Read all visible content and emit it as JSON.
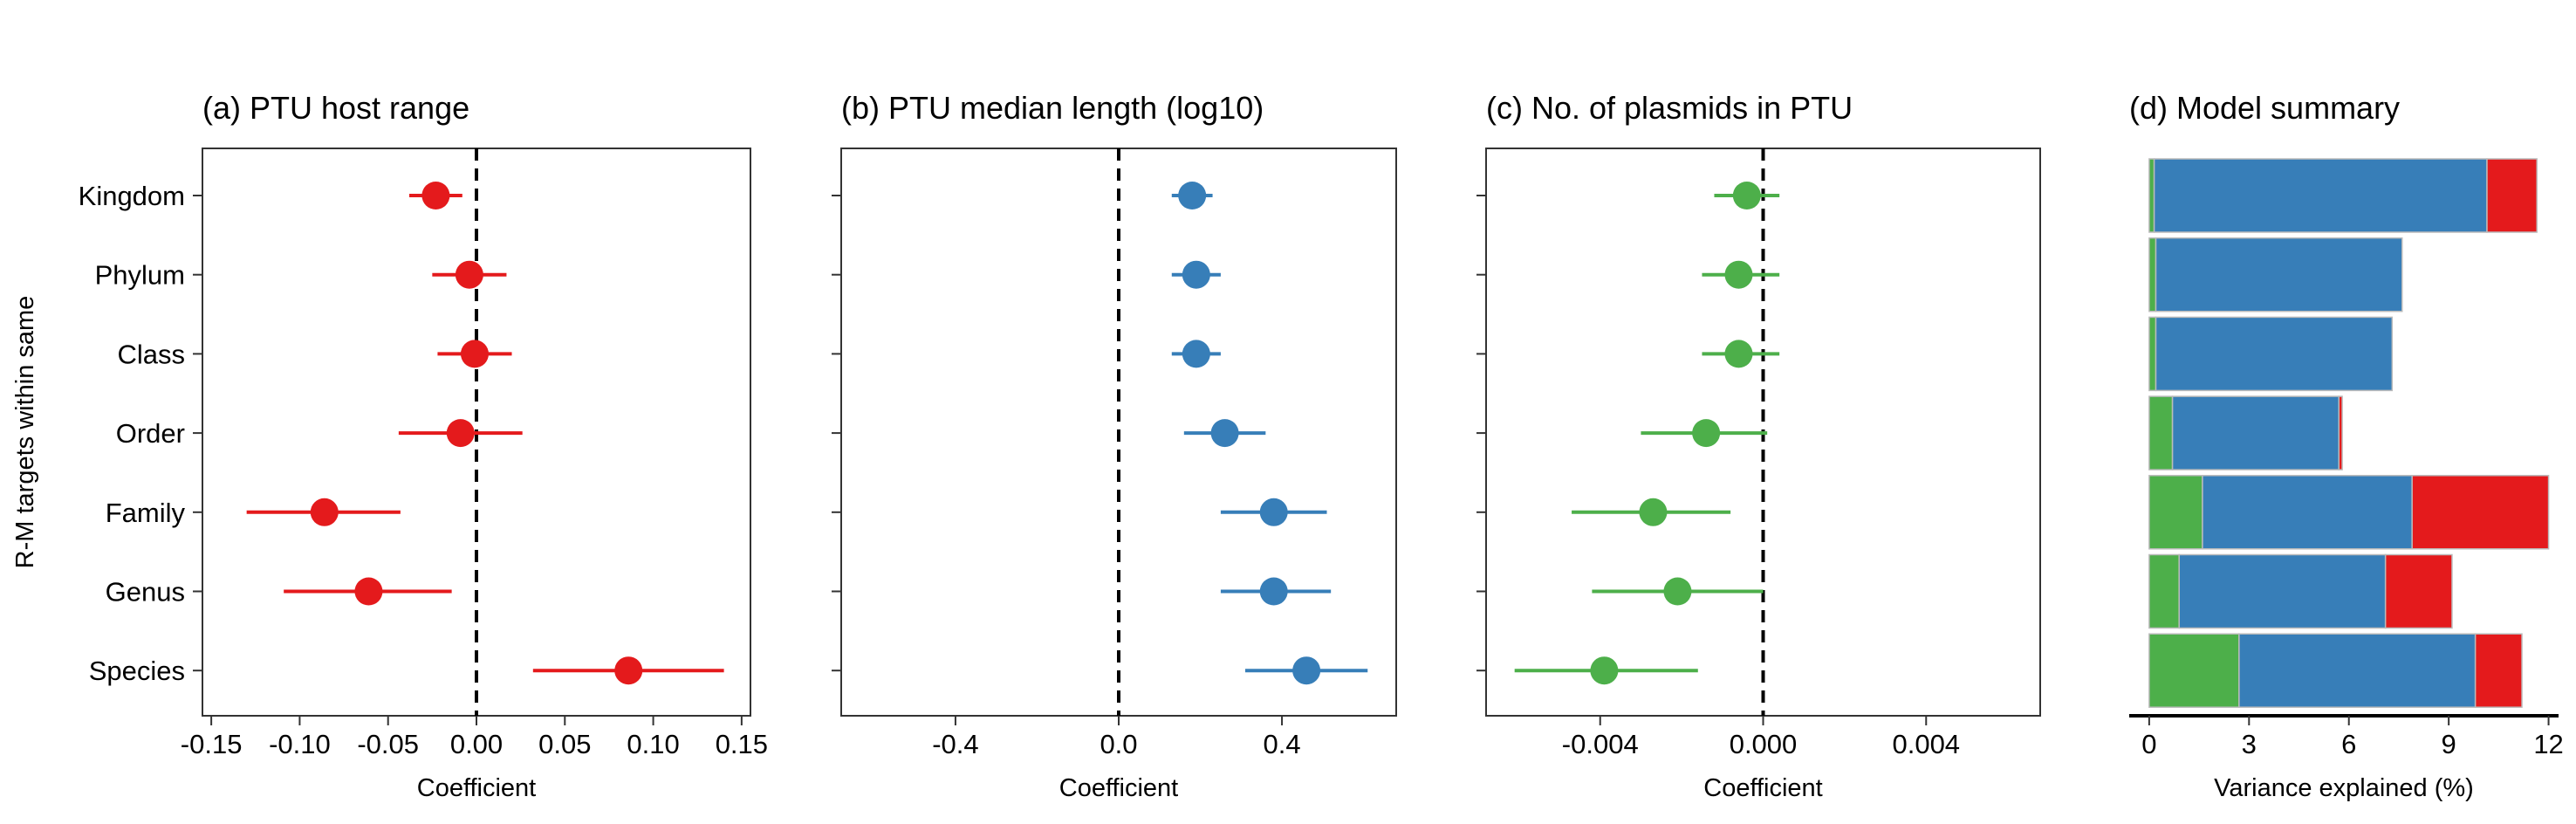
{
  "y_axis_label": "R-M targets within same",
  "categories": [
    "Kingdom",
    "Phylum",
    "Class",
    "Order",
    "Family",
    "Genus",
    "Species"
  ],
  "chart_data": [
    {
      "type": "scatter",
      "title": "(a) PTU host range",
      "xlabel": "Coefficient",
      "color": "#E41A1C",
      "xlim": [
        -0.155,
        0.155
      ],
      "xticks": [
        -0.15,
        -0.1,
        -0.05,
        0.0,
        0.05,
        0.1,
        0.15
      ],
      "xtick_labels": [
        "-0.15",
        "-0.10",
        "-0.05",
        "0.00",
        "0.05",
        "0.10",
        "0.15"
      ],
      "reference_line": 0,
      "points": [
        {
          "category": "Kingdom",
          "estimate": -0.023,
          "lower": -0.038,
          "upper": -0.008
        },
        {
          "category": "Phylum",
          "estimate": -0.004,
          "lower": -0.025,
          "upper": 0.017
        },
        {
          "category": "Class",
          "estimate": -0.001,
          "lower": -0.022,
          "upper": 0.02
        },
        {
          "category": "Order",
          "estimate": -0.009,
          "lower": -0.044,
          "upper": 0.026
        },
        {
          "category": "Family",
          "estimate": -0.086,
          "lower": -0.13,
          "upper": -0.043
        },
        {
          "category": "Genus",
          "estimate": -0.061,
          "lower": -0.109,
          "upper": -0.014
        },
        {
          "category": "Species",
          "estimate": 0.086,
          "lower": 0.032,
          "upper": 0.14
        }
      ]
    },
    {
      "type": "scatter",
      "title": "(b) PTU median length (log10)",
      "xlabel": "Coefficient",
      "color": "#377EB8",
      "xlim": [
        -0.68,
        0.68
      ],
      "xticks": [
        -0.4,
        0.0,
        0.4
      ],
      "xtick_labels": [
        "-0.4",
        "0.0",
        "0.4"
      ],
      "reference_line": 0,
      "points": [
        {
          "category": "Kingdom",
          "estimate": 0.18,
          "lower": 0.13,
          "upper": 0.23
        },
        {
          "category": "Phylum",
          "estimate": 0.19,
          "lower": 0.13,
          "upper": 0.25
        },
        {
          "category": "Class",
          "estimate": 0.19,
          "lower": 0.13,
          "upper": 0.25
        },
        {
          "category": "Order",
          "estimate": 0.26,
          "lower": 0.16,
          "upper": 0.36
        },
        {
          "category": "Family",
          "estimate": 0.38,
          "lower": 0.25,
          "upper": 0.51
        },
        {
          "category": "Genus",
          "estimate": 0.38,
          "lower": 0.25,
          "upper": 0.52
        },
        {
          "category": "Species",
          "estimate": 0.46,
          "lower": 0.31,
          "upper": 0.61
        }
      ]
    },
    {
      "type": "scatter",
      "title": "(c) No. of plasmids in PTU",
      "xlabel": "Coefficient",
      "color": "#4DAF4A",
      "xlim": [
        -0.0068,
        0.0068
      ],
      "xticks": [
        -0.004,
        0.0,
        0.004
      ],
      "xtick_labels": [
        "-0.004",
        "0.000",
        "0.004"
      ],
      "reference_line": 0,
      "points": [
        {
          "category": "Kingdom",
          "estimate": -0.0004,
          "lower": -0.0012,
          "upper": 0.0004
        },
        {
          "category": "Phylum",
          "estimate": -0.0006,
          "lower": -0.0015,
          "upper": 0.0004
        },
        {
          "category": "Class",
          "estimate": -0.0006,
          "lower": -0.0015,
          "upper": 0.0004
        },
        {
          "category": "Order",
          "estimate": -0.0014,
          "lower": -0.003,
          "upper": 0.0001
        },
        {
          "category": "Family",
          "estimate": -0.0027,
          "lower": -0.0047,
          "upper": -0.0008
        },
        {
          "category": "Genus",
          "estimate": -0.0021,
          "lower": -0.0042,
          "upper": 0.0
        },
        {
          "category": "Species",
          "estimate": -0.0039,
          "lower": -0.0061,
          "upper": -0.0016
        }
      ]
    },
    {
      "type": "bar",
      "orientation": "horizontal",
      "stacked": true,
      "title": "(d) Model summary",
      "xlabel": "Variance explained (%)",
      "xlim": [
        -0.6,
        12.3
      ],
      "xticks": [
        0,
        3,
        6,
        9,
        12
      ],
      "xtick_labels": [
        "0",
        "3",
        "6",
        "9",
        "12"
      ],
      "series": [
        {
          "color": "#4DAF4A",
          "values": [
            0.15,
            0.2,
            0.2,
            0.7,
            1.6,
            0.9,
            2.7
          ]
        },
        {
          "color": "#377EB8",
          "values": [
            10.0,
            7.4,
            7.1,
            5.0,
            6.3,
            6.2,
            7.1
          ]
        },
        {
          "color": "#E41A1C",
          "values": [
            1.5,
            0.0,
            0.0,
            0.1,
            4.1,
            2.0,
            1.4
          ]
        }
      ]
    }
  ]
}
